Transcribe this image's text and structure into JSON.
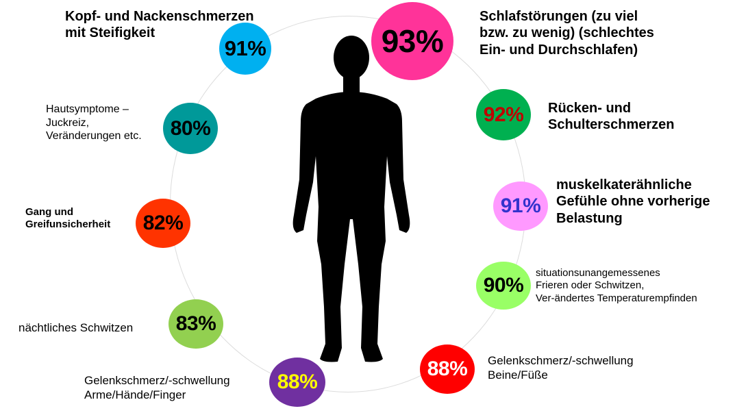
{
  "body_figure_icon": "human-silhouette-icon",
  "symptoms": [
    {
      "id": "kopf",
      "percent": "91%",
      "label_lines": [
        "Kopf- und Nackenschmerzen",
        "mit Steifigkeit"
      ],
      "bubble_color": "#00b0f0",
      "text_color": "#000000"
    },
    {
      "id": "schlaf",
      "percent": "93%",
      "label_lines": [
        "Schlafstörungen (zu viel",
        "bzw. zu wenig) (schlechtes",
        "Ein- und Durchschlafen)"
      ],
      "bubble_color": "#ff3399",
      "text_color": "#000000"
    },
    {
      "id": "haut",
      "percent": "80%",
      "label_lines": [
        "Hautsymptome –",
        "Juckreiz,",
        "Veränderungen etc."
      ],
      "bubble_color": "#009999",
      "text_color": "#000000"
    },
    {
      "id": "ruecken",
      "percent": "92%",
      "label_lines": [
        "Rücken- und",
        "Schulterschmerzen"
      ],
      "bubble_color": "#00b050",
      "text_color": "#c00000"
    },
    {
      "id": "muskel",
      "percent": "91%",
      "label_lines": [
        "muskelkaterähnliche",
        "Gefühle ohne vorherige",
        "Belastung"
      ],
      "bubble_color": "#ff99ff",
      "text_color": "#3333cc"
    },
    {
      "id": "gang",
      "percent": "82%",
      "label_lines": [
        "Gang und",
        "Greifunsicherheit"
      ],
      "bubble_color": "#ff3300",
      "text_color": "#000000"
    },
    {
      "id": "temperatur",
      "percent": "90%",
      "label_lines": [
        "situationsunangemessenes",
        "Frieren oder Schwitzen,",
        "Ver-ändertes Temperaturempfinden"
      ],
      "bubble_color": "#99ff66",
      "text_color": "#000000"
    },
    {
      "id": "schwitzen",
      "percent": "83%",
      "label_lines": [
        "nächtliches Schwitzen"
      ],
      "bubble_color": "#92d050",
      "text_color": "#000000"
    },
    {
      "id": "gelenk-arme",
      "percent": "88%",
      "label_lines": [
        "Gelenkschmerz/-schwellung",
        "Arme/Hände/Finger"
      ],
      "bubble_color": "#7030a0",
      "text_color": "#ffff00"
    },
    {
      "id": "gelenk-beine",
      "percent": "88%",
      "label_lines": [
        "Gelenkschmerz/-schwellung",
        "Beine/Füße"
      ],
      "bubble_color": "#ff0000",
      "text_color": "#ffffff"
    }
  ]
}
